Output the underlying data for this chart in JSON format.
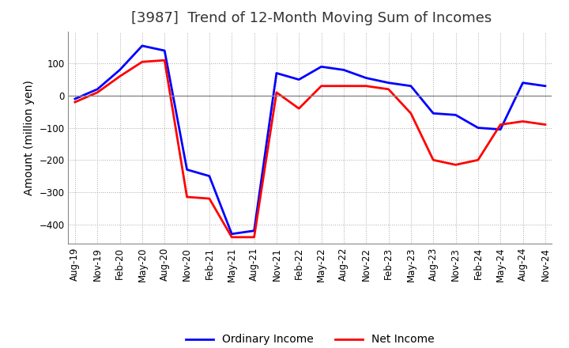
{
  "title": "[3987]  Trend of 12-Month Moving Sum of Incomes",
  "ylabel": "Amount (million yen)",
  "legend_labels": [
    "Ordinary Income",
    "Net Income"
  ],
  "line_colors": [
    "#0000ff",
    "#ff0000"
  ],
  "x_labels": [
    "Aug-19",
    "Nov-19",
    "Feb-20",
    "May-20",
    "Aug-20",
    "Nov-20",
    "Feb-21",
    "May-21",
    "Aug-21",
    "Nov-21",
    "Feb-22",
    "May-22",
    "Aug-22",
    "Nov-22",
    "Feb-23",
    "May-23",
    "Aug-23",
    "Nov-23",
    "Feb-24",
    "May-24",
    "Aug-24",
    "Nov-24"
  ],
  "ordinary_income": [
    -10,
    20,
    80,
    155,
    140,
    -230,
    -250,
    -430,
    -420,
    70,
    50,
    90,
    80,
    55,
    40,
    30,
    -55,
    -60,
    -100,
    -105,
    40,
    30
  ],
  "net_income": [
    -20,
    10,
    60,
    105,
    110,
    -315,
    -320,
    -440,
    -440,
    10,
    -40,
    30,
    30,
    30,
    20,
    -55,
    -200,
    -215,
    -200,
    -90,
    -80,
    -90
  ],
  "ylim": [
    -460,
    200
  ],
  "yticks": [
    100,
    0,
    -100,
    -200,
    -300,
    -400
  ],
  "grid_color": "#aaaaaa",
  "background_color": "#ffffff",
  "plot_bg_color": "#ffffff",
  "title_fontsize": 13,
  "axis_fontsize": 8.5,
  "ylabel_fontsize": 10,
  "linewidth": 2.0
}
